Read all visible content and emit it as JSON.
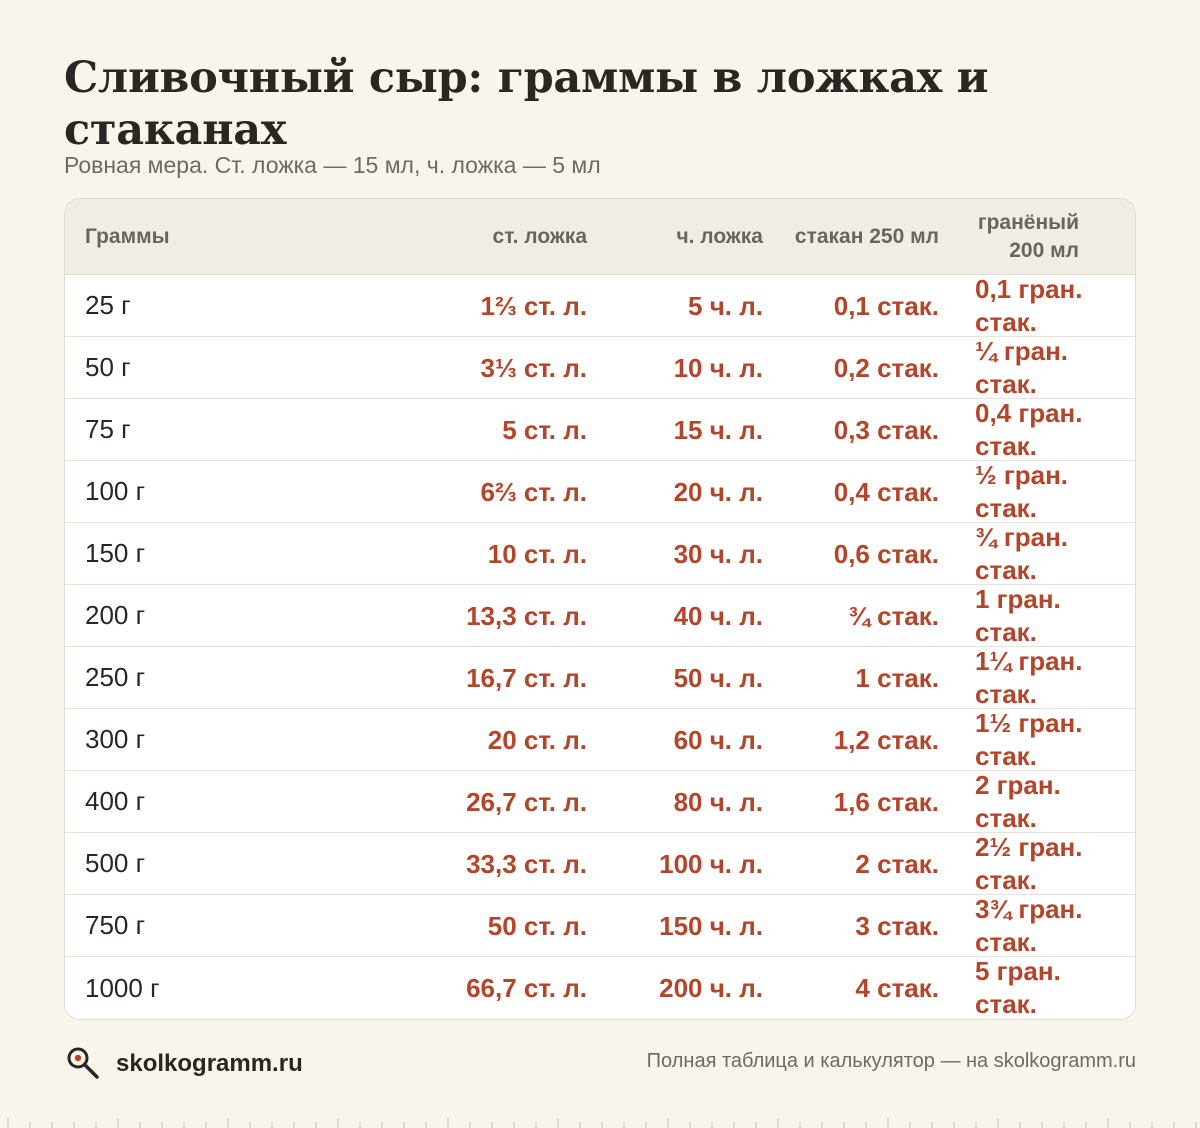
{
  "title": "Сливочный сыр: граммы в ложках и стаканах",
  "subtitle": "Ровная мера. Ст. ложка — 15 мл, ч. ложка — 5 мл",
  "table": {
    "headers": [
      "Граммы",
      "ст. ложка",
      "ч. ложка",
      "стакан 250 мл",
      "гранёный 200 мл"
    ],
    "rows": [
      [
        "25 г",
        "1⅔ ст. л.",
        "5 ч. л.",
        "0,1 стак.",
        "0,1 гран. стак."
      ],
      [
        "50 г",
        "3⅓ ст. л.",
        "10 ч. л.",
        "0,2 стак.",
        "¼ гран. стак."
      ],
      [
        "75 г",
        "5 ст. л.",
        "15 ч. л.",
        "0,3 стак.",
        "0,4 гран. стак."
      ],
      [
        "100 г",
        "6⅔ ст. л.",
        "20 ч. л.",
        "0,4 стак.",
        "½ гран. стак."
      ],
      [
        "150 г",
        "10 ст. л.",
        "30 ч. л.",
        "0,6 стак.",
        "¾ гран. стак."
      ],
      [
        "200 г",
        "13,3 ст. л.",
        "40 ч. л.",
        "¾ стак.",
        "1 гран. стак."
      ],
      [
        "250 г",
        "16,7 ст. л.",
        "50 ч. л.",
        "1 стак.",
        "1¼ гран. стак."
      ],
      [
        "300 г",
        "20 ст. л.",
        "60 ч. л.",
        "1,2 стак.",
        "1½ гран. стак."
      ],
      [
        "400 г",
        "26,7 ст. л.",
        "80 ч. л.",
        "1,6 стак.",
        "2 гран. стак."
      ],
      [
        "500 г",
        "33,3 ст. л.",
        "100 ч. л.",
        "2 стак.",
        "2½ гран. стак."
      ],
      [
        "750 г",
        "50 ст. л.",
        "150 ч. л.",
        "3 стак.",
        "3¾ гран. стак."
      ],
      [
        "1000 г",
        "66,7 ст. л.",
        "200 ч. л.",
        "4 стак.",
        "5 гран. стак."
      ]
    ]
  },
  "footer": {
    "brand": "skolkogramm.ru",
    "logo_icon": "magnifier-icon",
    "note": "Полная таблица и калькулятор — на skolkogramm.ru"
  },
  "colors": {
    "background": "#f8f5ec",
    "accent": "#b5452a",
    "text": "#2b2622",
    "muted": "#6f6a63"
  }
}
